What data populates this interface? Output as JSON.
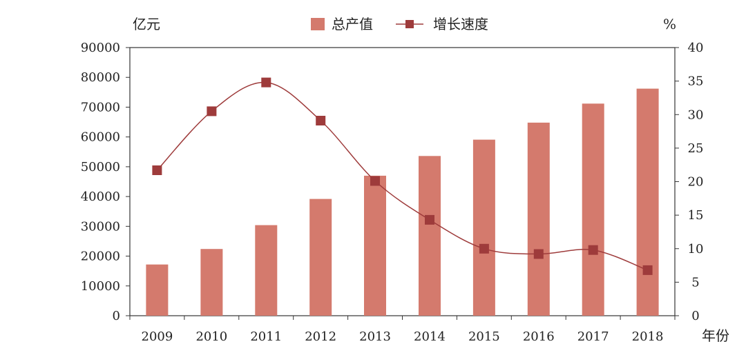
{
  "chart_data": {
    "type": "bar",
    "categories": [
      "2009",
      "2010",
      "2011",
      "2012",
      "2013",
      "2014",
      "2015",
      "2016",
      "2017",
      "2018"
    ],
    "series": [
      {
        "name": "总产值",
        "type": "bar",
        "axis": "left",
        "values": [
          17200,
          22400,
          30400,
          39200,
          47000,
          53600,
          59100,
          64800,
          71200,
          76200
        ],
        "color": "#d47a6d"
      },
      {
        "name": "增长速度",
        "type": "line",
        "axis": "right",
        "values": [
          21.7,
          30.5,
          34.8,
          29.1,
          20.1,
          14.3,
          10.0,
          9.2,
          9.8,
          6.8
        ],
        "color": "#9e3b3b"
      }
    ],
    "ylabel_left": "亿元",
    "ylabel_right": "%",
    "xlabel": "年份",
    "ylim_left": [
      0,
      90000
    ],
    "yticks_left": [
      0,
      10000,
      20000,
      30000,
      40000,
      50000,
      60000,
      70000,
      80000,
      90000
    ],
    "ylim_right": [
      0,
      40
    ],
    "yticks_right": [
      0,
      5,
      10,
      15,
      20,
      25,
      30,
      35,
      40
    ],
    "legend_position": "top-center",
    "grid": false
  }
}
